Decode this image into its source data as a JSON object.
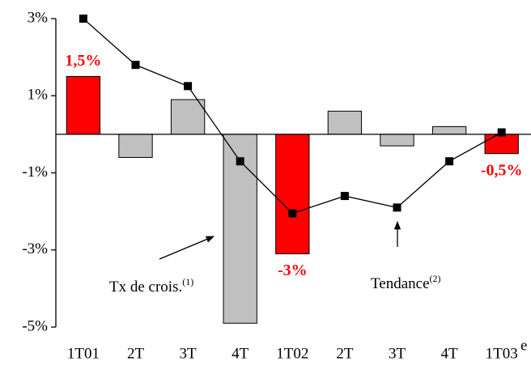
{
  "chart_data": {
    "type": "bar",
    "categories": [
      "1T01",
      "2T",
      "3T",
      "4T",
      "1T02",
      "2T",
      "3T",
      "4T",
      "1T03"
    ],
    "series": [
      {
        "name": "Tx de crois.",
        "type": "bar",
        "colors": [
          "#ff0000",
          "#c0c0c0",
          "#c0c0c0",
          "#c0c0c0",
          "#ff0000",
          "#c0c0c0",
          "#c0c0c0",
          "#c0c0c0",
          "#ff0000"
        ],
        "values": [
          1.5,
          -0.6,
          0.9,
          -4.9,
          -3.1,
          0.6,
          -0.3,
          0.2,
          -0.5
        ],
        "value_labels": [
          "1,5%",
          null,
          null,
          null,
          "-3%",
          null,
          null,
          null,
          "-0,5%"
        ]
      },
      {
        "name": "Tendance",
        "type": "line",
        "color": "#000000",
        "values": [
          3.0,
          1.8,
          1.25,
          -0.7,
          -2.05,
          -1.6,
          -1.9,
          -0.7,
          0.05
        ]
      }
    ],
    "ylim": [
      -5,
      3
    ],
    "yticks": [
      {
        "value": 3,
        "label": "3%"
      },
      {
        "value": 1,
        "label": "1%"
      },
      {
        "value": -1,
        "label": "-1%"
      },
      {
        "value": -3,
        "label": "-3%"
      },
      {
        "value": -5,
        "label": "-5%"
      }
    ],
    "annotations": [
      {
        "text": "Tx de crois.",
        "note": "(1)"
      },
      {
        "text": "Tendance",
        "note": "(2)"
      },
      {
        "text": "e"
      }
    ]
  }
}
